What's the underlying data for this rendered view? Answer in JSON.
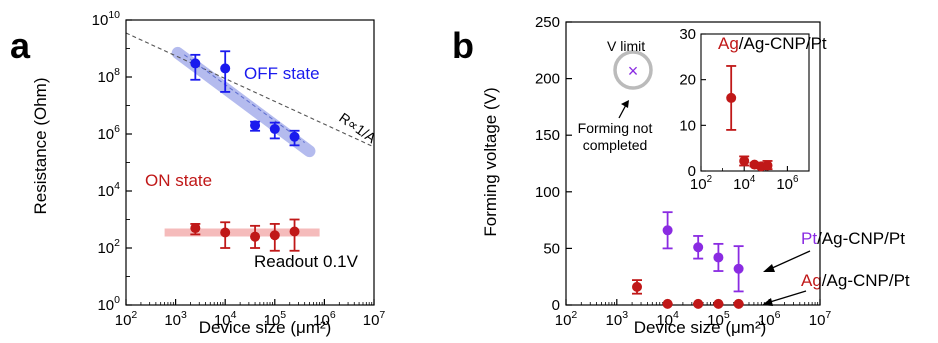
{
  "colors": {
    "off": "#1a1aee",
    "on": "#c01818",
    "pt": "#8a2be2",
    "ag": "#c01818",
    "off_band": "#a8b0ec",
    "on_band": "#f4b4b4",
    "guide": "#555555"
  },
  "chart_data": [
    {
      "panel": "a",
      "type": "scatter",
      "xlabel": "Device size (μm²)",
      "ylabel": "Resistance (Ohm)",
      "x_scale": "log",
      "y_scale": "log",
      "xlim": [
        100,
        10000000
      ],
      "ylim": [
        1,
        10000000000
      ],
      "x_ticks": [
        {
          "base": "10",
          "exp": "2"
        },
        {
          "base": "10",
          "exp": "3"
        },
        {
          "base": "10",
          "exp": "4"
        },
        {
          "base": "10",
          "exp": "5"
        },
        {
          "base": "10",
          "exp": "6"
        },
        {
          "base": "10",
          "exp": "7"
        }
      ],
      "y_ticks": [
        {
          "base": "10",
          "exp": "0"
        },
        {
          "base": "10",
          "exp": "2"
        },
        {
          "base": "10",
          "exp": "4"
        },
        {
          "base": "10",
          "exp": "6"
        },
        {
          "base": "10",
          "exp": "8"
        },
        {
          "base": "10",
          "exp": "10"
        }
      ],
      "series": [
        {
          "name": "OFF state",
          "points": [
            {
              "x": 2500,
              "y": 300000000,
              "lo": 80000000,
              "hi": 600000000
            },
            {
              "x": 10000,
              "y": 200000000,
              "lo": 30000000,
              "hi": 800000000
            },
            {
              "x": 40000,
              "y": 2000000,
              "lo": 1300000,
              "hi": 2700000
            },
            {
              "x": 100000,
              "y": 1500000,
              "lo": 700000,
              "hi": 2500000
            },
            {
              "x": 250000,
              "y": 800000,
              "lo": 400000,
              "hi": 1300000
            }
          ]
        },
        {
          "name": "ON state",
          "points": [
            {
              "x": 2500,
              "y": 500,
              "lo": 300,
              "hi": 700
            },
            {
              "x": 10000,
              "y": 350,
              "lo": 100,
              "hi": 800
            },
            {
              "x": 40000,
              "y": 250,
              "lo": 100,
              "hi": 600
            },
            {
              "x": 100000,
              "y": 280,
              "lo": 80,
              "hi": 700
            },
            {
              "x": 250000,
              "y": 380,
              "lo": 80,
              "hi": 1000
            }
          ]
        }
      ],
      "annotations": {
        "off_label": "OFF state",
        "on_label": "ON state",
        "trend_label": "R∝1/A",
        "readout": "Readout 0.1V"
      }
    },
    {
      "panel": "b",
      "type": "scatter",
      "xlabel": "Device size (μm²)",
      "ylabel": "Forming voltage (V)",
      "x_scale": "log",
      "xlim": [
        100,
        10000000
      ],
      "ylim": [
        0,
        250
      ],
      "x_ticks": [
        {
          "base": "10",
          "exp": "2"
        },
        {
          "base": "10",
          "exp": "3"
        },
        {
          "base": "10",
          "exp": "4"
        },
        {
          "base": "10",
          "exp": "5"
        },
        {
          "base": "10",
          "exp": "6"
        },
        {
          "base": "10",
          "exp": "7"
        }
      ],
      "y_ticks": [
        "0",
        "50",
        "100",
        "150",
        "200",
        "250"
      ],
      "series": [
        {
          "name_prefix": "Pt",
          "name_suffix": "/Ag-CNP/Pt",
          "points": [
            {
              "x": 10000,
              "y": 66,
              "lo": 50,
              "hi": 82
            },
            {
              "x": 40000,
              "y": 51,
              "lo": 41,
              "hi": 61
            },
            {
              "x": 100000,
              "y": 42,
              "lo": 30,
              "hi": 54
            },
            {
              "x": 250000,
              "y": 32,
              "lo": 12,
              "hi": 52
            }
          ]
        },
        {
          "name_prefix": "Ag",
          "name_suffix": "/Ag-CNP/Pt",
          "points": [
            {
              "x": 2500,
              "y": 16,
              "lo": 10,
              "hi": 22
            },
            {
              "x": 10000,
              "y": 1,
              "lo": 1,
              "hi": 1
            },
            {
              "x": 40000,
              "y": 1,
              "lo": 1,
              "hi": 1
            },
            {
              "x": 100000,
              "y": 1,
              "lo": 1,
              "hi": 1
            },
            {
              "x": 250000,
              "y": 1,
              "lo": 1,
              "hi": 1
            }
          ]
        }
      ],
      "annotations": {
        "v_limit": "V limit",
        "v_limit_value": 200,
        "forming_line1": "Forming not",
        "forming_line2": "completed",
        "marker": "×"
      },
      "inset": {
        "type": "scatter",
        "title_prefix": "Ag",
        "title_suffix": "/Ag-CNP/Pt",
        "x_scale": "log",
        "xlim": [
          100,
          10000000
        ],
        "ylim": [
          0,
          30
        ],
        "x_ticks": [
          {
            "base": "10",
            "exp": "2"
          },
          {
            "base": "10",
            "exp": "4"
          },
          {
            "base": "10",
            "exp": "6"
          }
        ],
        "y_ticks": [
          "0",
          "10",
          "20",
          "30"
        ],
        "points": [
          {
            "x": 2500,
            "y": 16,
            "lo": 9,
            "hi": 23
          },
          {
            "x": 10000,
            "y": 2.2,
            "lo": 1.2,
            "hi": 3.2
          },
          {
            "x": 30000,
            "y": 1.4,
            "lo": 1.0,
            "hi": 1.8
          },
          {
            "x": 60000,
            "y": 1.0,
            "lo": 0.6,
            "hi": 1.4
          },
          {
            "x": 120000,
            "y": 1.2,
            "lo": 0.4,
            "hi": 2.2
          }
        ]
      }
    }
  ]
}
